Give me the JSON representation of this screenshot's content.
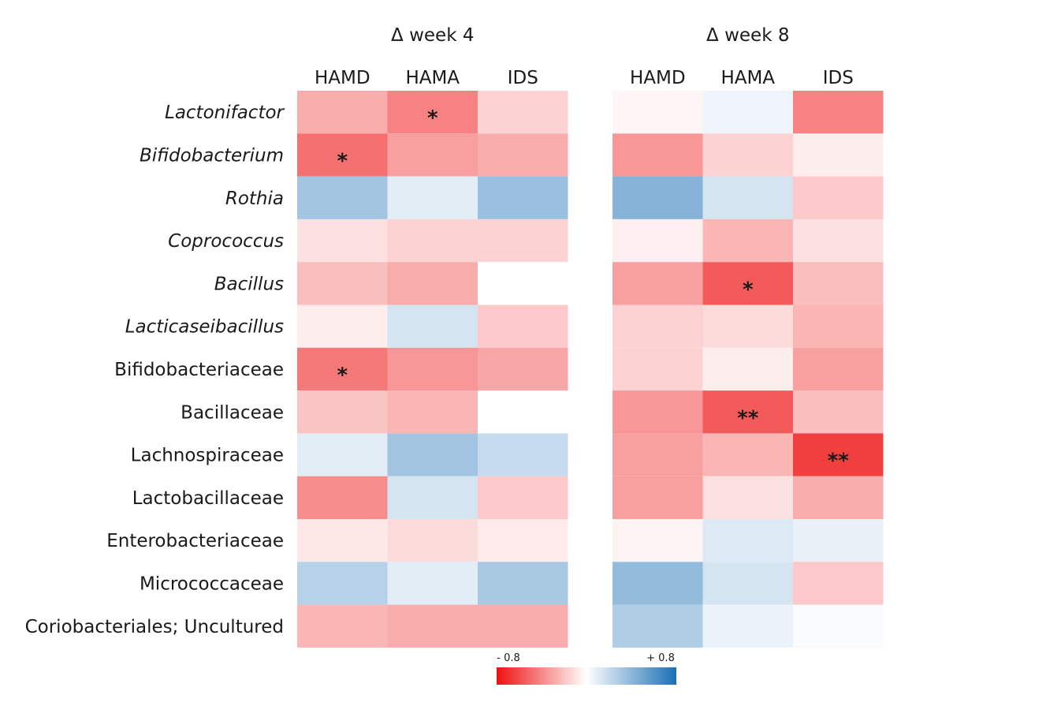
{
  "chart_data": {
    "type": "heatmap",
    "rows": [
      {
        "label": "Lactonifactor",
        "italic": true
      },
      {
        "label": "Bifidobacterium",
        "italic": true
      },
      {
        "label": "Rothia",
        "italic": true
      },
      {
        "label": "Coprococcus",
        "italic": true
      },
      {
        "label": "Bacillus",
        "italic": true
      },
      {
        "label": "Lacticaseibacillus",
        "italic": true
      },
      {
        "label": "Bifidobacteriaceae",
        "italic": false
      },
      {
        "label": "Bacillaceae",
        "italic": false
      },
      {
        "label": "Lachnospiraceae",
        "italic": false
      },
      {
        "label": "Lactobacillaceae",
        "italic": false
      },
      {
        "label": "Enterobacteriaceae",
        "italic": false
      },
      {
        "label": "Micrococcaceae",
        "italic": false
      },
      {
        "label": "Coriobacteriales; Uncultured",
        "italic": false
      }
    ],
    "panels": [
      {
        "title": "Δ week 4",
        "columns": [
          "HAMD",
          "HAMA",
          "IDS"
        ],
        "values": [
          [
            -0.28,
            -0.42,
            -0.15
          ],
          [
            -0.48,
            -0.32,
            -0.28
          ],
          [
            0.32,
            0.1,
            0.35
          ],
          [
            -0.1,
            -0.15,
            -0.15
          ],
          [
            -0.22,
            -0.28,
            null
          ],
          [
            -0.06,
            0.15,
            -0.18
          ],
          [
            -0.45,
            -0.35,
            -0.3
          ],
          [
            -0.2,
            -0.25,
            null
          ],
          [
            0.1,
            0.32,
            0.2
          ],
          [
            -0.38,
            0.15,
            -0.18
          ],
          [
            -0.08,
            -0.12,
            -0.07
          ],
          [
            0.25,
            0.1,
            0.3
          ],
          [
            -0.25,
            -0.28,
            -0.28
          ]
        ],
        "significance": [
          [
            "",
            "*",
            ""
          ],
          [
            "*",
            "",
            ""
          ],
          [
            "",
            "",
            ""
          ],
          [
            "",
            "",
            ""
          ],
          [
            "",
            "",
            ""
          ],
          [
            "",
            "",
            ""
          ],
          [
            "*",
            "",
            ""
          ],
          [
            "",
            "",
            ""
          ],
          [
            "",
            "",
            ""
          ],
          [
            "",
            "",
            ""
          ],
          [
            "",
            "",
            ""
          ],
          [
            "",
            "",
            ""
          ],
          [
            "",
            "",
            ""
          ]
        ]
      },
      {
        "title": "Δ week 8",
        "columns": [
          "HAMD",
          "HAMA",
          "IDS"
        ],
        "values": [
          [
            -0.03,
            0.06,
            -0.42
          ],
          [
            -0.35,
            -0.15,
            -0.06
          ],
          [
            0.42,
            0.15,
            -0.18
          ],
          [
            -0.05,
            -0.25,
            -0.1
          ],
          [
            -0.32,
            -0.55,
            -0.22
          ],
          [
            -0.15,
            -0.12,
            -0.25
          ],
          [
            -0.15,
            -0.06,
            -0.32
          ],
          [
            -0.35,
            -0.55,
            -0.22
          ],
          [
            -0.32,
            -0.25,
            -0.65
          ],
          [
            -0.32,
            -0.1,
            -0.28
          ],
          [
            -0.04,
            0.12,
            0.08
          ],
          [
            0.38,
            0.15,
            -0.18
          ],
          [
            0.28,
            0.07,
            0.02
          ]
        ],
        "significance": [
          [
            "",
            "",
            ""
          ],
          [
            "",
            "",
            ""
          ],
          [
            "",
            "",
            ""
          ],
          [
            "",
            "",
            ""
          ],
          [
            "",
            "*",
            ""
          ],
          [
            "",
            "",
            ""
          ],
          [
            "",
            "",
            ""
          ],
          [
            "",
            "**",
            ""
          ],
          [
            "",
            "",
            "**"
          ],
          [
            "",
            "",
            ""
          ],
          [
            "",
            "",
            ""
          ],
          [
            "",
            "",
            ""
          ],
          [
            "",
            "",
            ""
          ]
        ]
      }
    ],
    "color_scale": {
      "min": -0.8,
      "max": 0.8,
      "min_label": "- 0.8",
      "max_label": "+ 0.8",
      "min_color": "#ee1111",
      "mid_color": "#ffffff",
      "max_color": "#1a6fb5"
    }
  }
}
